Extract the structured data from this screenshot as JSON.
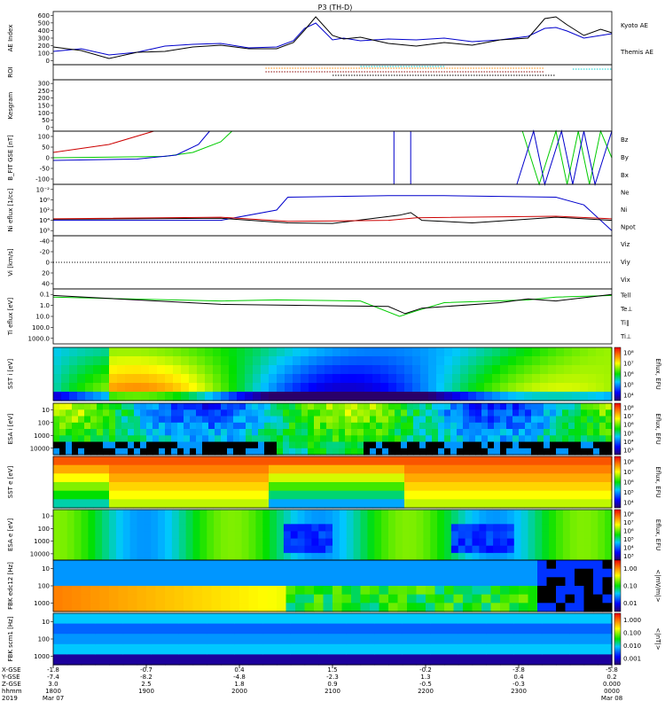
{
  "chart_data": {
    "type": "line",
    "title": "P3 (TH-D)",
    "panels": [
      {
        "id": "ae",
        "ylabel": "AE Index",
        "ylim": [
          0,
          600
        ],
        "yticks": [
          "0",
          "100",
          "200",
          "300",
          "400",
          "500",
          "600"
        ],
        "legend": [
          {
            "name": "Kyoto AE",
            "color": "#0000cc"
          },
          {
            "name": "Themis AE",
            "color": "#000000"
          }
        ],
        "series": [
          {
            "name": "Kyoto AE",
            "color": "#0000cc",
            "x": [
              0,
              0.05,
              0.1,
              0.15,
              0.2,
              0.25,
              0.3,
              0.35,
              0.4,
              0.43,
              0.45,
              0.47,
              0.5,
              0.52,
              0.55,
              0.6,
              0.65,
              0.7,
              0.75,
              0.8,
              0.85,
              0.88,
              0.9,
              0.92,
              0.95,
              0.98,
              1.0
            ],
            "y": [
              150,
              180,
              110,
              140,
              210,
              230,
              240,
              190,
              200,
              270,
              410,
              470,
              280,
              300,
              270,
              290,
              280,
              300,
              260,
              280,
              320,
              410,
              420,
              380,
              300,
              330,
              350
            ]
          },
          {
            "name": "Themis AE",
            "color": "#000000",
            "x": [
              0,
              0.05,
              0.1,
              0.15,
              0.2,
              0.25,
              0.3,
              0.35,
              0.4,
              0.43,
              0.45,
              0.47,
              0.5,
              0.52,
              0.55,
              0.6,
              0.65,
              0.7,
              0.75,
              0.8,
              0.85,
              0.88,
              0.9,
              0.92,
              0.95,
              0.98,
              1.0
            ],
            "y": [
              200,
              160,
              70,
              140,
              150,
              200,
              220,
              180,
              180,
              250,
              390,
              540,
              330,
              290,
              310,
              240,
              210,
              250,
              220,
              280,
              300,
              520,
              540,
              450,
              330,
              400,
              360
            ]
          }
        ]
      },
      {
        "id": "roi",
        "ylabel": "ROI"
      },
      {
        "id": "kessgram",
        "ylabel": "Kesgram",
        "ylim": [
          0,
          300
        ],
        "yticks": [
          "0",
          "50",
          "100",
          "150",
          "200",
          "250",
          "300"
        ]
      },
      {
        "id": "bfit",
        "ylabel": "B_FIT GSE [nT]",
        "ylim": [
          -100,
          100
        ],
        "yticks": [
          "-100",
          "-50",
          "0",
          "50",
          "100"
        ],
        "legend": [
          {
            "name": "Bz",
            "color": "#cc0000"
          },
          {
            "name": "By",
            "color": "#00cc00"
          },
          {
            "name": "Bx",
            "color": "#0000cc"
          }
        ]
      },
      {
        "id": "ni",
        "ylabel": "Ni eflux [1/cc]",
        "yticks": [
          "10⁵",
          "10⁴",
          "10²",
          "10⁰",
          "10⁻²"
        ],
        "legend": [
          {
            "name": "Ne",
            "color": "#cc0000"
          },
          {
            "name": "Ni",
            "color": "#000000"
          },
          {
            "name": "Npot",
            "color": "#0000cc"
          }
        ]
      },
      {
        "id": "vi",
        "ylabel": "Vi [km/s]",
        "ylim": [
          -40,
          40
        ],
        "yticks": [
          "40",
          "20",
          "0",
          "-20",
          "-40"
        ],
        "legend": [
          {
            "name": "Viz",
            "color": "#cc0000"
          },
          {
            "name": "Viy",
            "color": "#00cc00"
          },
          {
            "name": "Vix",
            "color": "#0000cc"
          }
        ]
      },
      {
        "id": "ti",
        "ylabel": "Ti eflux [eV]",
        "yticks": [
          "1000.0",
          "100.0",
          "10.0",
          "1.0",
          "0.1"
        ],
        "legend": [
          {
            "name": "Tell",
            "color": "#000000"
          },
          {
            "name": "Te⊥",
            "color": "#cc0000"
          },
          {
            "name": "Ti∥",
            "color": "#00cc00"
          },
          {
            "name": "Ti⊥",
            "color": "#0000cc"
          }
        ]
      },
      {
        "id": "sst_i",
        "ylabel": "SST i [eV]",
        "colorbar": "Eflux, EFU",
        "cticks": [
          "10⁸",
          "10⁷",
          "10⁶",
          "10⁵",
          "10⁴"
        ]
      },
      {
        "id": "esa_i",
        "ylabel": "ESA i [eV]",
        "yticks": [
          "10000",
          "1000",
          "100",
          "10"
        ],
        "colorbar": "Eflux, EFU",
        "cticks": [
          "10⁸",
          "10⁷",
          "10⁶",
          "10⁵",
          "10⁴",
          "10³"
        ]
      },
      {
        "id": "sst_e",
        "ylabel": "SST e [eV]",
        "colorbar": "Eflux, EFU",
        "cticks": [
          "10⁸",
          "10⁷",
          "10⁶",
          "10⁵",
          "10⁴"
        ]
      },
      {
        "id": "esa_e",
        "ylabel": "ESA e [eV]",
        "yticks": [
          "10000",
          "1000",
          "100",
          "10"
        ],
        "colorbar": "Eflux, EFU",
        "cticks": [
          "10⁸",
          "10⁷",
          "10⁶",
          "10⁵",
          "10⁴",
          "10³"
        ]
      },
      {
        "id": "fbk_e",
        "ylabel": "FBK edc12 [Hz]",
        "yticks": [
          "1000",
          "100",
          "10"
        ],
        "colorbar": "<|mV/m|>",
        "cticks": [
          "1.00",
          "0.10",
          "0.01"
        ]
      },
      {
        "id": "fbk_b",
        "ylabel": "FBK scm1 [Hz]",
        "yticks": [
          "1000",
          "100",
          "10"
        ],
        "colorbar": "<|nT|>",
        "cticks": [
          "1.000",
          "0.100",
          "0.010",
          "0.001"
        ]
      }
    ],
    "xaxis": {
      "row_labels": [
        "X-GSE",
        "Y-GSE",
        "Z-GSE",
        "hhmm",
        "2019"
      ],
      "columns": [
        {
          "x": "-1.8",
          "y": "-7.4",
          "z": "3.0",
          "t": "1800",
          "d": "Mar 07"
        },
        {
          "x": "-0.7",
          "y": "-8.2",
          "z": "2.5",
          "t": "1900",
          "d": ""
        },
        {
          "x": "0.4",
          "y": "-4.8",
          "z": "1.8",
          "t": "2000",
          "d": ""
        },
        {
          "x": "1.5",
          "y": "-2.3",
          "z": "0.9",
          "t": "2100",
          "d": ""
        },
        {
          "x": "-0.2",
          "y": "1.3",
          "z": "-0.5",
          "t": "2200",
          "d": ""
        },
        {
          "x": "-3.8",
          "y": "0.4",
          "z": "-0.3",
          "t": "2300",
          "d": ""
        },
        {
          "x": "-5.8",
          "y": "0.2",
          "z": "0.000",
          "t": "0000",
          "d": "Mar 08"
        }
      ]
    }
  }
}
